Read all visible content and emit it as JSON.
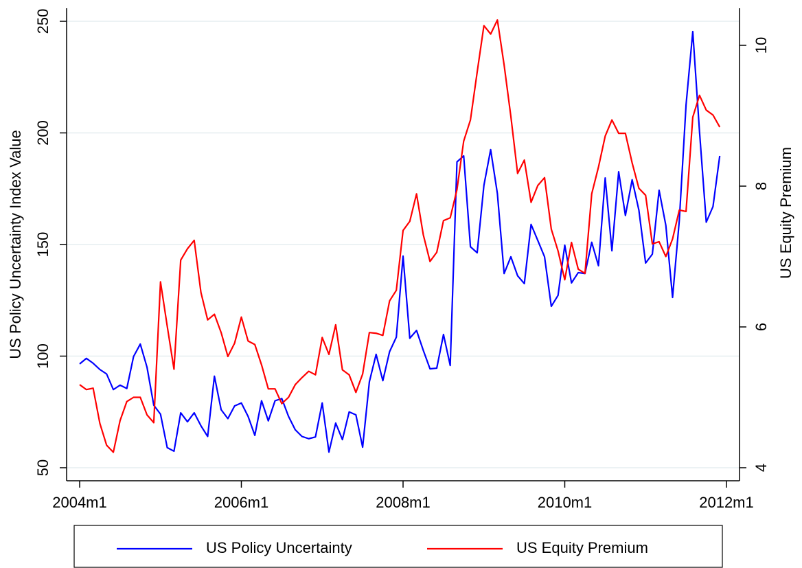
{
  "chart_data": {
    "type": "line",
    "y_label": "US Policy Uncertainty Index Value",
    "y2_label": "US Equity Premium",
    "x": [
      2004,
      2004.0833,
      2004.1667,
      2004.25,
      2004.3333,
      2004.4167,
      2004.5,
      2004.5833,
      2004.6667,
      2004.75,
      2004.8333,
      2004.9167,
      2005,
      2005.0833,
      2005.1667,
      2005.25,
      2005.3333,
      2005.4167,
      2005.5,
      2005.5833,
      2005.6667,
      2005.75,
      2005.8333,
      2005.9167,
      2006,
      2006.0833,
      2006.1667,
      2006.25,
      2006.3333,
      2006.4167,
      2006.5,
      2006.5833,
      2006.6667,
      2006.75,
      2006.8333,
      2006.9167,
      2007,
      2007.0833,
      2007.1667,
      2007.25,
      2007.3333,
      2007.4167,
      2007.5,
      2007.5833,
      2007.6667,
      2007.75,
      2007.8333,
      2007.9167,
      2008,
      2008.0833,
      2008.1667,
      2008.25,
      2008.3333,
      2008.4167,
      2008.5,
      2008.5833,
      2008.6667,
      2008.75,
      2008.8333,
      2008.9167,
      2009,
      2009.0833,
      2009.1667,
      2009.25,
      2009.3333,
      2009.4167,
      2009.5,
      2009.5833,
      2009.6667,
      2009.75,
      2009.8333,
      2009.9167,
      2010,
      2010.0833,
      2010.1667,
      2010.25,
      2010.3333,
      2010.4167,
      2010.5,
      2010.5833,
      2010.6667,
      2010.75,
      2010.8333,
      2010.9167,
      2011,
      2011.0833,
      2011.1667,
      2011.25,
      2011.3333,
      2011.4167,
      2011.5,
      2011.5833,
      2011.6667,
      2011.75,
      2011.8333,
      2011.9167
    ],
    "xlim": [
      2004,
      2012
    ],
    "xticks": [
      {
        "value": 2004,
        "label": "2004m1"
      },
      {
        "value": 2006,
        "label": "2006m1"
      },
      {
        "value": 2008,
        "label": "2008m1"
      },
      {
        "value": 2010,
        "label": "2010m1"
      },
      {
        "value": 2012,
        "label": "2012m1"
      }
    ],
    "ylim": [
      50,
      250
    ],
    "yticks": [
      50,
      100,
      150,
      200,
      250
    ],
    "y2lim": [
      4,
      10
    ],
    "y2ticks": [
      4,
      6,
      8,
      10
    ],
    "grid": true,
    "series": [
      {
        "name": "US Policy Uncertainty",
        "color": "#0000ff",
        "values": [
          96.5,
          99,
          96.8,
          94,
          92,
          85,
          87,
          85.5,
          99.8,
          105.4,
          95,
          78,
          74,
          59,
          57.4,
          74.6,
          70.6,
          74.6,
          68.8,
          64,
          91,
          76,
          72,
          77.7,
          79,
          73,
          64.5,
          80,
          71,
          80,
          81,
          73,
          67,
          64,
          63,
          63.8,
          79,
          57,
          70,
          62.6,
          75,
          73.7,
          59.2,
          88.5,
          100.8,
          89,
          102,
          108.5,
          144.8,
          108,
          111.5,
          102.6,
          94.3,
          94.6,
          109.7,
          95.8,
          187,
          189.7,
          149,
          146.3,
          176.5,
          192.5,
          172.8,
          137,
          144.5,
          136,
          132.5,
          159,
          151.8,
          144.5,
          122.3,
          127.2,
          149.7,
          132.8,
          137.4,
          137,
          151,
          140.5,
          179.8,
          147.2,
          182.6,
          163,
          179,
          165.4,
          141.7,
          145.7,
          174.3,
          158.6,
          126.3,
          160.8,
          212.5,
          245.4,
          200.5,
          160,
          167,
          189.7
        ]
      },
      {
        "name": "US Equity Premium",
        "color": "#ff0000",
        "axis": "y2",
        "values": [
          5.18,
          5.11,
          5.13,
          4.63,
          4.32,
          4.22,
          4.67,
          4.94,
          5.0,
          5.0,
          4.75,
          4.64,
          6.64,
          6.01,
          5.4,
          6.95,
          7.11,
          7.23,
          6.49,
          6.1,
          6.18,
          5.92,
          5.58,
          5.77,
          6.14,
          5.8,
          5.75,
          5.46,
          5.12,
          5.12,
          4.91,
          5.0,
          5.18,
          5.28,
          5.37,
          5.32,
          5.85,
          5.61,
          6.03,
          5.39,
          5.32,
          5.07,
          5.33,
          5.92,
          5.91,
          5.88,
          6.37,
          6.52,
          7.37,
          7.5,
          7.89,
          7.31,
          6.93,
          7.06,
          7.51,
          7.55,
          7.95,
          8.64,
          8.94,
          9.62,
          10.28,
          10.16,
          10.36,
          9.72,
          8.99,
          8.18,
          8.37,
          7.77,
          8.01,
          8.12,
          7.39,
          7.08,
          6.67,
          7.2,
          6.82,
          6.76,
          7.89,
          8.27,
          8.71,
          8.94,
          8.75,
          8.75,
          8.33,
          7.97,
          7.87,
          7.18,
          7.21,
          7.0,
          7.25,
          7.66,
          7.64,
          8.98,
          9.29,
          9.08,
          9.01,
          8.84
        ]
      }
    ]
  }
}
